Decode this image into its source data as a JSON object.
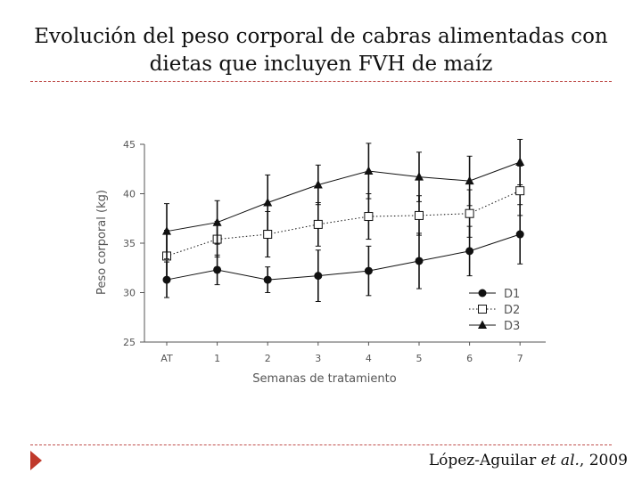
{
  "slide": {
    "title_line1": "Evolución del peso corporal de cabras alimentadas con",
    "title_line2": "dietas que incluyen FVH de maíz",
    "citation_author": "López-Aguilar",
    "citation_etal": "et al.",
    "citation_year": ", 2009"
  },
  "colors": {
    "divider": "#c0504d",
    "arrow": "#c0392b",
    "ink": "#111111",
    "axis": "#555555"
  },
  "chart_data": {
    "type": "line",
    "title": "",
    "xlabel": "Semanas de tratamiento",
    "ylabel": "Peso corporal (kg)",
    "categories": [
      "AT",
      "1",
      "2",
      "3",
      "4",
      "5",
      "6",
      "7"
    ],
    "ylim": [
      25,
      45
    ],
    "yticks": [
      25,
      30,
      35,
      40,
      45
    ],
    "grid": false,
    "legend_position": "bottom-right",
    "series": [
      {
        "name": "D1",
        "marker": "filled-circle",
        "line": "solid",
        "values": [
          31.3,
          32.3,
          31.3,
          31.7,
          32.2,
          33.2,
          34.2,
          35.9
        ],
        "error": [
          1.8,
          1.5,
          1.3,
          2.6,
          2.5,
          2.8,
          2.5,
          3.0
        ]
      },
      {
        "name": "D2",
        "marker": "open-square",
        "line": "dotted",
        "values": [
          33.7,
          35.4,
          35.9,
          36.9,
          37.7,
          37.8,
          38.0,
          40.3
        ],
        "error": [
          2.6,
          1.8,
          2.3,
          2.2,
          2.3,
          2.0,
          2.4,
          2.5
        ]
      },
      {
        "name": "D3",
        "marker": "filled-triangle",
        "line": "solid",
        "values": [
          36.2,
          37.1,
          39.1,
          40.9,
          42.3,
          41.7,
          41.3,
          43.2
        ],
        "error": [
          2.8,
          2.2,
          2.8,
          2.0,
          2.8,
          2.5,
          2.5,
          2.3
        ]
      }
    ]
  }
}
